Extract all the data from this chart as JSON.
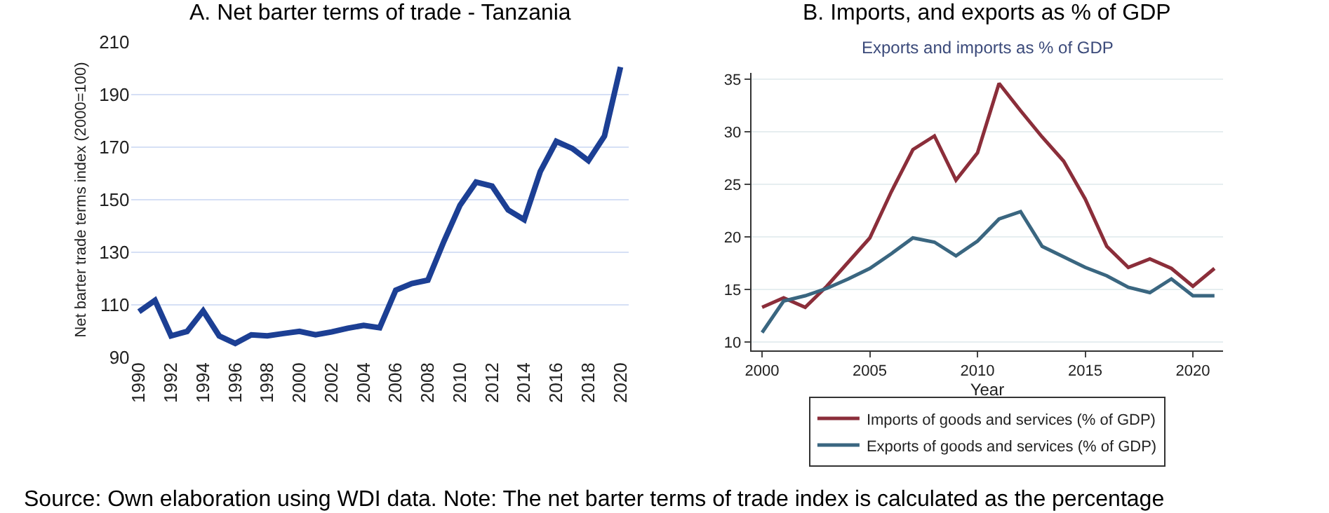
{
  "chart_data": [
    {
      "type": "line",
      "title": "A. Net barter terms of trade - Tanzania",
      "ylabel": "Net barter trade terms index (2000=100)",
      "x": [
        1990,
        1991,
        1992,
        1993,
        1994,
        1995,
        1996,
        1997,
        1998,
        1999,
        2000,
        2001,
        2002,
        2003,
        2004,
        2005,
        2006,
        2007,
        2008,
        2009,
        2010,
        2011,
        2012,
        2013,
        2014,
        2015,
        2016,
        2017,
        2018,
        2019,
        2020
      ],
      "series": [
        {
          "color": "#1c3f94",
          "values": [
            107.4,
            111.7,
            98.2,
            99.9,
            107.7,
            98.2,
            95.3,
            98.6,
            98.2,
            99.1,
            99.9,
            98.6,
            99.7,
            101.1,
            102.2,
            101.3,
            115.6,
            118.1,
            119.4,
            134.2,
            147.9,
            156.7,
            155.2,
            146.1,
            142.4,
            160.7,
            172.2,
            169.5,
            164.9,
            174.2,
            200.5
          ]
        }
      ],
      "xlim": [
        1989.5,
        2020.5
      ],
      "xticks": [
        1990,
        1992,
        1994,
        1996,
        1998,
        2000,
        2002,
        2004,
        2006,
        2008,
        2010,
        2012,
        2014,
        2016,
        2018,
        2020
      ],
      "ylim": [
        90,
        210
      ],
      "yticks": [
        90,
        110,
        130,
        150,
        170,
        190,
        210
      ],
      "grid": "y",
      "legend": false
    },
    {
      "type": "line",
      "title": "B. Imports, and exports as % of GDP",
      "subtitle": "Exports and imports as % of GDP",
      "xlabel": "Year",
      "x": [
        2000,
        2001,
        2002,
        2003,
        2004,
        2005,
        2006,
        2007,
        2008,
        2009,
        2010,
        2011,
        2012,
        2013,
        2014,
        2015,
        2016,
        2017,
        2018,
        2019,
        2020,
        2021
      ],
      "series": [
        {
          "name": "Imports of goods and services (% of GDP)",
          "color": "#8b2e3a",
          "values": [
            13.3,
            14.2,
            13.3,
            15.3,
            17.6,
            19.9,
            24.3,
            28.3,
            29.6,
            25.4,
            28.0,
            34.6,
            32.0,
            29.5,
            27.2,
            23.6,
            19.1,
            17.1,
            17.9,
            17.0,
            15.3,
            17.0
          ]
        },
        {
          "name": "Exports of goods and services (% of GDP)",
          "color": "#3a6680",
          "values": [
            10.9,
            13.9,
            14.4,
            15.1,
            16.0,
            17.0,
            18.4,
            19.9,
            19.5,
            18.2,
            19.6,
            21.7,
            22.4,
            19.1,
            18.1,
            17.1,
            16.3,
            15.2,
            14.7,
            16.0,
            14.4,
            14.4
          ]
        }
      ],
      "xlim": [
        1999.5,
        2021.4
      ],
      "xticks": [
        2000,
        2005,
        2010,
        2015,
        2020
      ],
      "ylim": [
        9.2,
        35.6
      ],
      "yticks": [
        10,
        15,
        20,
        25,
        30,
        35
      ],
      "grid": "y",
      "legend": "bottom",
      "annotations": [
        "Source: Own elaboration using WDI data. Note: The net barter terms of trade index is calculated as the percentage"
      ]
    }
  ]
}
